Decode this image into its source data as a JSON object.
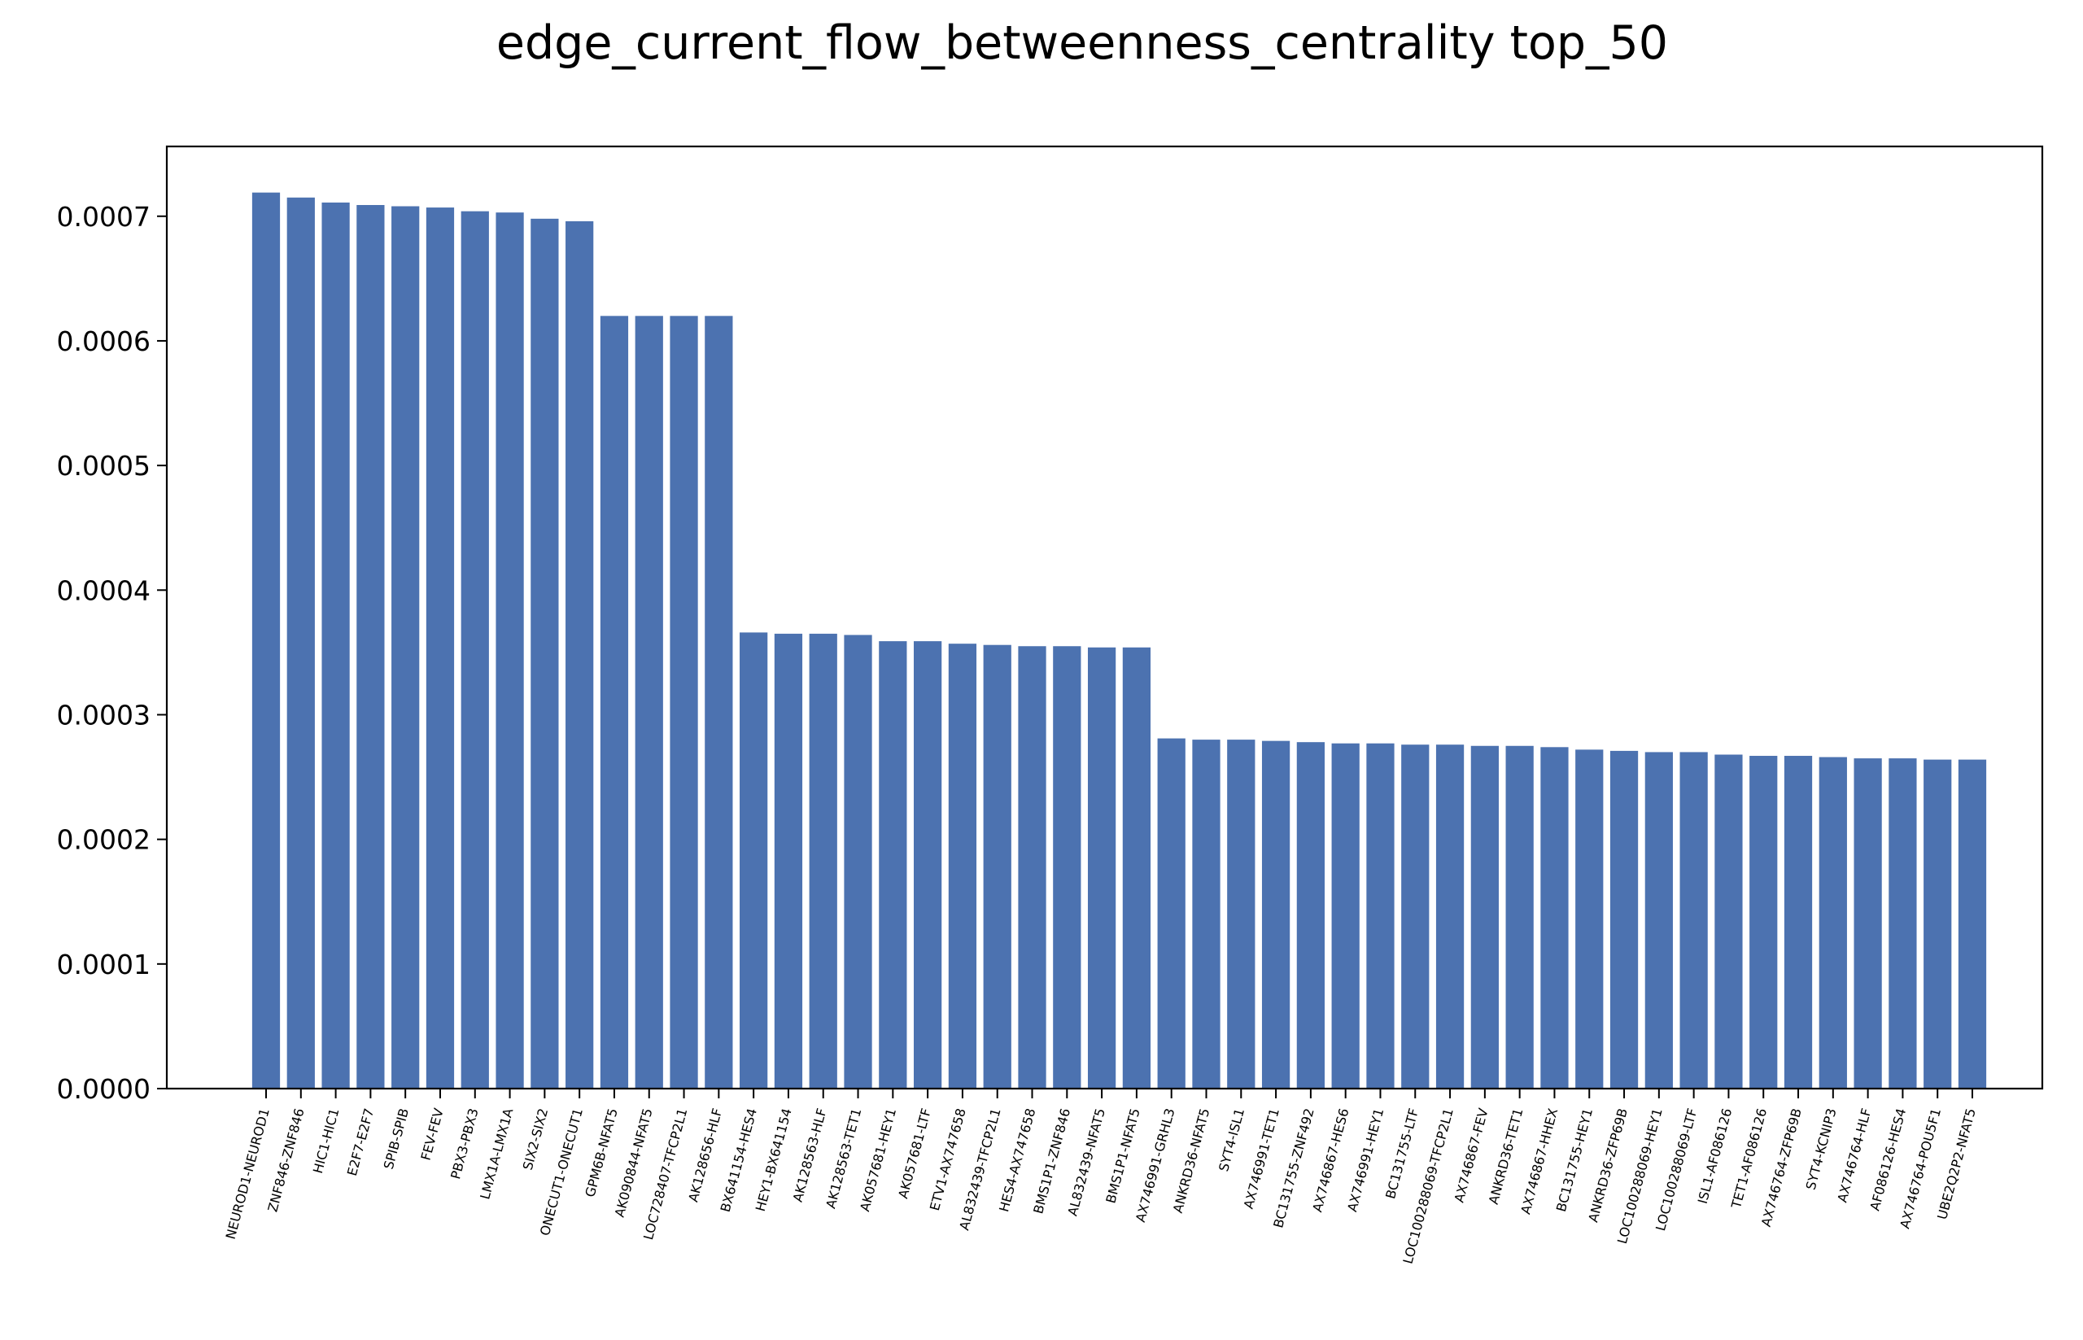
{
  "chart_data": {
    "type": "bar",
    "title": "edge_current_flow_betweenness_centrality top_50",
    "xlabel": "",
    "ylabel": "",
    "ylim": [
      0,
      0.000756
    ],
    "yticks": [
      "0.0000",
      "0.0001",
      "0.0002",
      "0.0003",
      "0.0004",
      "0.0005",
      "0.0006",
      "0.0007"
    ],
    "bar_color": "#4c72b0",
    "grid": false,
    "categories": [
      "NEUROD1-NEUROD1",
      "ZNF846-ZNF846",
      "HIC1-HIC1",
      "E2F7-E2F7",
      "SPIB-SPIB",
      "FEV-FEV",
      "PBX3-PBX3",
      "LMX1A-LMX1A",
      "SIX2-SIX2",
      "ONECUT1-ONECUT1",
      "GPM6B-NFAT5",
      "AK090844-NFAT5",
      "LOC728407-TFCP2L1",
      "AK128656-HLF",
      "BX641154-HES4",
      "HEY1-BX641154",
      "AK128563-HLF",
      "AK128563-TET1",
      "AK057681-HEY1",
      "AK057681-LTF",
      "ETV1-AX747658",
      "AL832439-TFCP2L1",
      "HES4-AX747658",
      "BMS1P1-ZNF846",
      "AL832439-NFAT5",
      "BMS1P1-NFAT5",
      "AX746991-GRHL3",
      "ANKRD36-NFAT5",
      "SYT4-ISL1",
      "AX746991-TET1",
      "BC131755-ZNF492",
      "AX746867-HES6",
      "AX746991-HEY1",
      "BC131755-LTF",
      "LOC100288069-TFCP2L1",
      "AX746867-FEV",
      "ANKRD36-TET1",
      "AX746867-HHEX",
      "BC131755-HEY1",
      "ANKRD36-ZFP69B",
      "LOC100288069-HEY1",
      "LOC100288069-LTF",
      "ISL1-AF086126",
      "TET1-AF086126",
      "AX746764-ZFP69B",
      "SYT4-KCNIP3",
      "AX746764-HLF",
      "AF086126-HES4",
      "AX746764-POU5F1",
      "UBE2Q2P2-NFAT5"
    ],
    "values": [
      0.000719,
      0.000715,
      0.000711,
      0.000709,
      0.000708,
      0.000707,
      0.000704,
      0.000703,
      0.000698,
      0.000696,
      0.00062,
      0.00062,
      0.00062,
      0.00062,
      0.000366,
      0.000365,
      0.000365,
      0.000364,
      0.000359,
      0.000359,
      0.000357,
      0.000356,
      0.000355,
      0.000355,
      0.000354,
      0.000354,
      0.000281,
      0.00028,
      0.00028,
      0.000279,
      0.000278,
      0.000277,
      0.000277,
      0.000276,
      0.000276,
      0.000275,
      0.000275,
      0.000274,
      0.000272,
      0.000271,
      0.00027,
      0.00027,
      0.000268,
      0.000267,
      0.000267,
      0.000266,
      0.000265,
      0.000265,
      0.000264,
      0.000264
    ]
  }
}
